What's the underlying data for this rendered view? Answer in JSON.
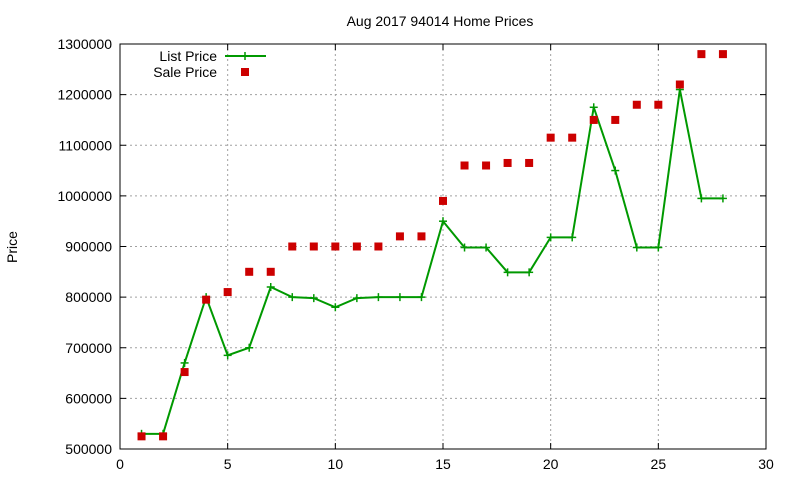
{
  "chart_data": {
    "type": "line",
    "title": "Aug 2017 94014 Home Prices",
    "xlabel": "",
    "ylabel": "Price",
    "xlim": [
      0,
      30
    ],
    "ylim": [
      500000,
      1300000
    ],
    "xticks": [
      0,
      5,
      10,
      15,
      20,
      25,
      30
    ],
    "yticks": [
      500000,
      600000,
      700000,
      800000,
      900000,
      1000000,
      1100000,
      1200000,
      1300000
    ],
    "grid": true,
    "legend_position": "top-left",
    "x": [
      1,
      2,
      3,
      4,
      5,
      6,
      7,
      8,
      9,
      10,
      11,
      12,
      13,
      14,
      15,
      16,
      17,
      18,
      19,
      20,
      21,
      22,
      23,
      24,
      25,
      26,
      27,
      28
    ],
    "series": [
      {
        "name": "List Price",
        "kind": "line-points",
        "marker": "plus",
        "color": "#009900",
        "values": [
          530000,
          530000,
          670000,
          800000,
          685000,
          700000,
          820000,
          800000,
          798000,
          780000,
          798000,
          800000,
          800000,
          800000,
          950000,
          898000,
          898000,
          849000,
          849000,
          918000,
          918000,
          1175000,
          1050000,
          898000,
          898000,
          1210000,
          995000,
          995000
        ]
      },
      {
        "name": "Sale Price",
        "kind": "points",
        "marker": "square",
        "color": "#cc0000",
        "values": [
          525000,
          525000,
          652000,
          795000,
          810000,
          850000,
          850000,
          900000,
          900000,
          900000,
          900000,
          900000,
          920000,
          920000,
          990000,
          1060000,
          1060000,
          1065000,
          1065000,
          1115000,
          1115000,
          1150000,
          1150000,
          1180000,
          1180000,
          1220000,
          1280000,
          1280000
        ]
      }
    ]
  }
}
